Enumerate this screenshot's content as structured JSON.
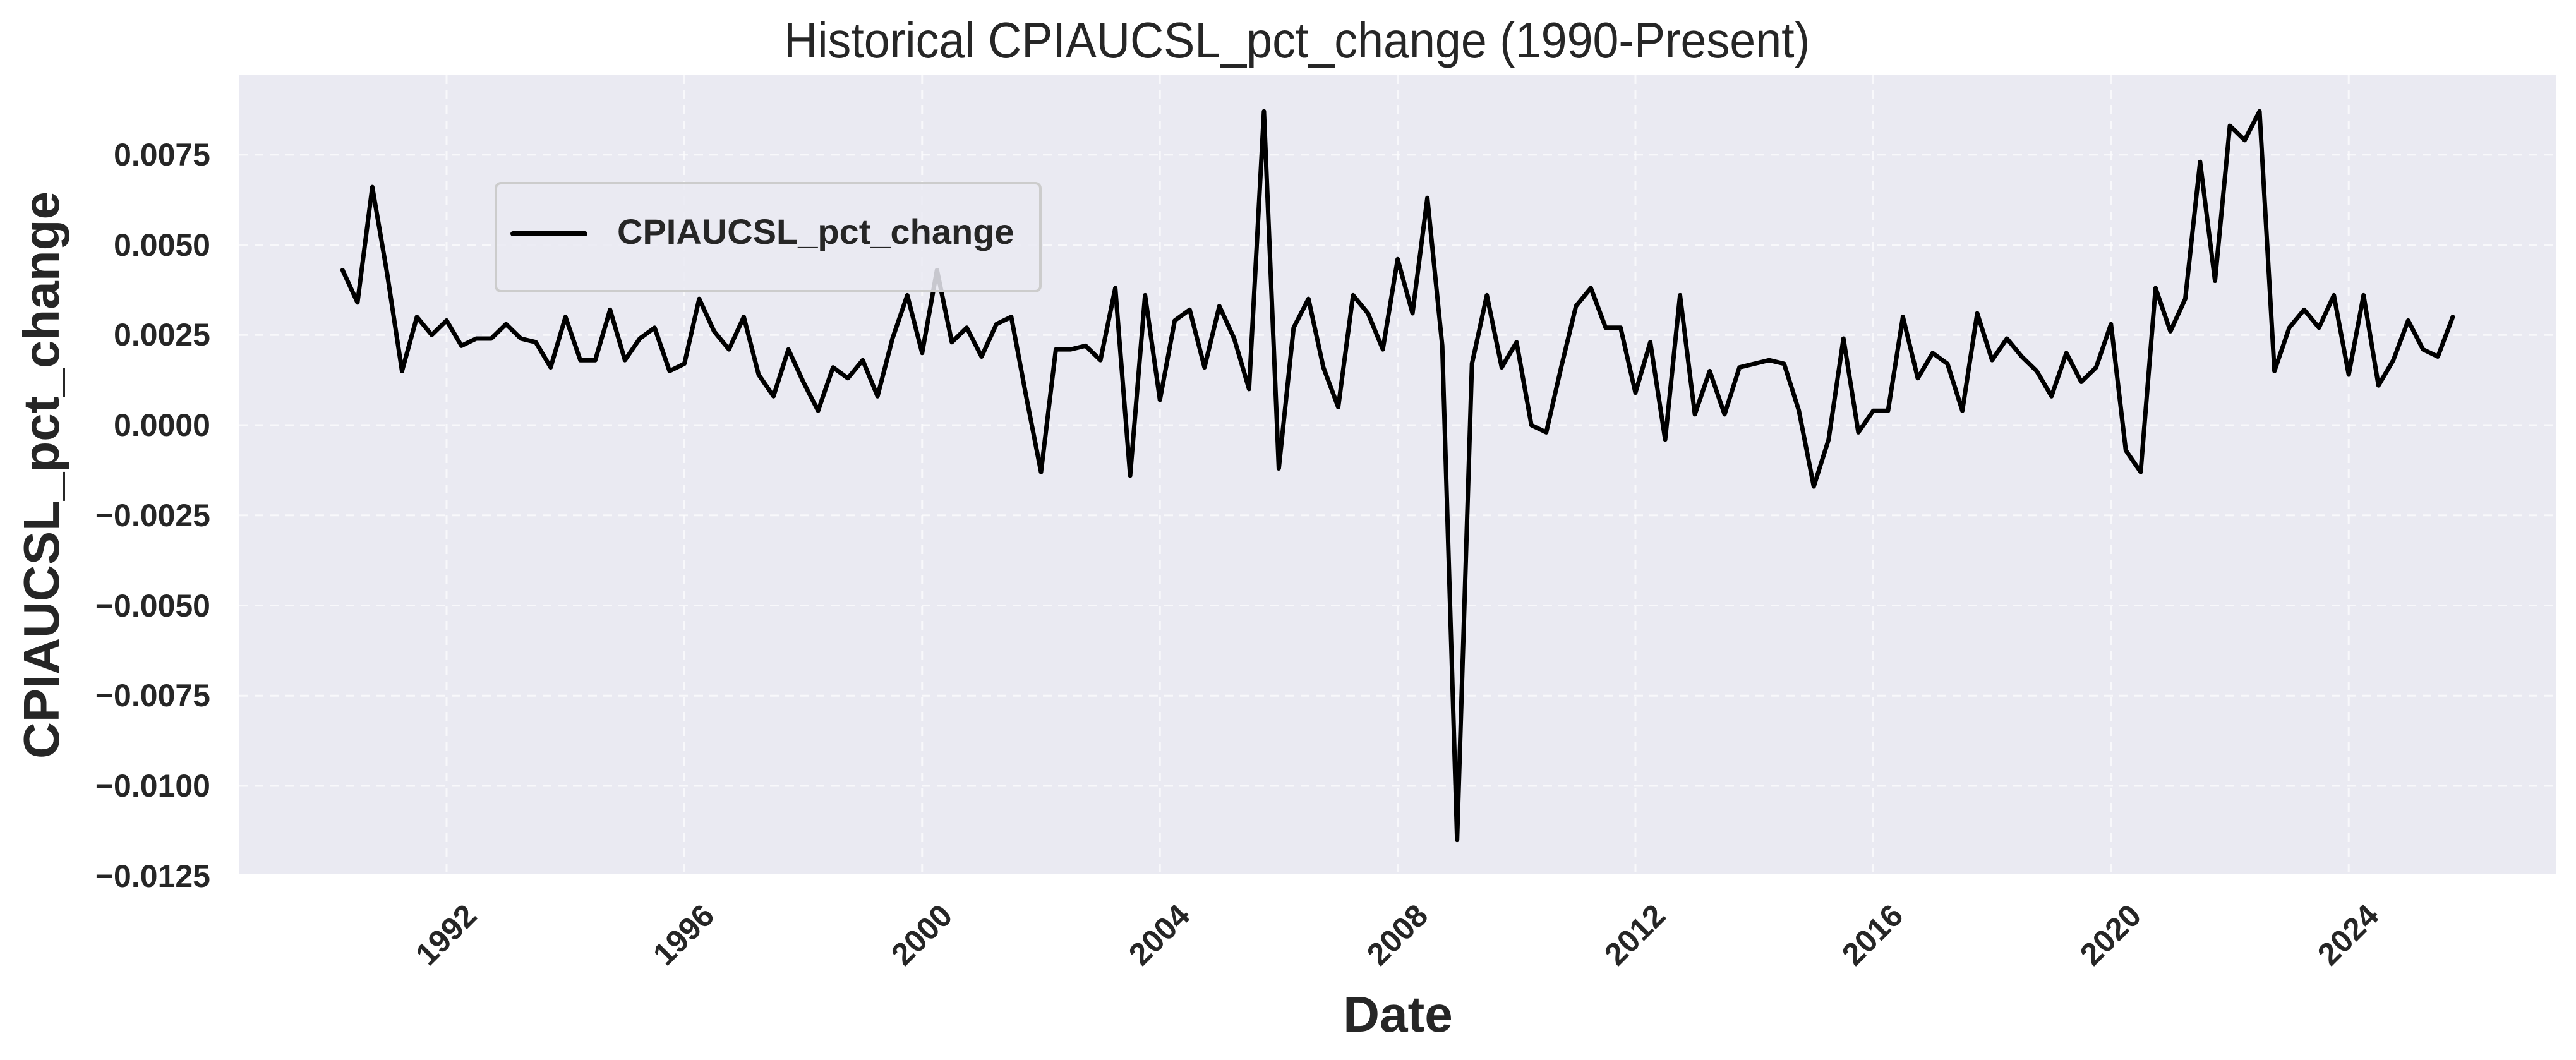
{
  "chart_data": {
    "type": "line",
    "title": "Historical CPIAUCSL_pct_change (1990-Present)",
    "xlabel": "Date",
    "ylabel": "CPIAUCSL_pct_change",
    "ylim": [
      -0.0125,
      0.0097
    ],
    "xlim": [
      1988.3,
      2027.3
    ],
    "yticks": [
      "0.0075",
      "0.0050",
      "0.0025",
      "0.0000",
      "−0.0025",
      "−0.0050",
      "−0.0075",
      "−0.0100",
      "−0.0125"
    ],
    "ytick_values": [
      0.0075,
      0.005,
      0.0025,
      0.0,
      -0.0025,
      -0.005,
      -0.0075,
      -0.01,
      -0.0125
    ],
    "xticks": [
      "1992",
      "1996",
      "2000",
      "2004",
      "2008",
      "2012",
      "2016",
      "2020",
      "2024"
    ],
    "xtick_values": [
      1992,
      1996,
      2000,
      2004,
      2008,
      2012,
      2016,
      2020,
      2024
    ],
    "grid": true,
    "legend_position": "upper left",
    "series": [
      {
        "name": "CPIAUCSL_pct_change",
        "color": "#000000",
        "x_start": 1990.25,
        "x_step": 0.25,
        "values": [
          0.0043,
          0.0034,
          0.0066,
          0.0042,
          0.0015,
          0.003,
          0.0025,
          0.0029,
          0.0022,
          0.0024,
          0.0024,
          0.0028,
          0.0024,
          0.0023,
          0.0016,
          0.003,
          0.0018,
          0.0018,
          0.0032,
          0.0018,
          0.0024,
          0.0027,
          0.0015,
          0.0017,
          0.0035,
          0.0026,
          0.0021,
          0.003,
          0.0014,
          0.0008,
          0.0021,
          0.0012,
          0.0004,
          0.0016,
          0.0013,
          0.0018,
          0.0008,
          0.0024,
          0.0036,
          0.002,
          0.0043,
          0.0023,
          0.0027,
          0.0019,
          0.0028,
          0.003,
          0.0008,
          -0.0013,
          0.0021,
          0.0021,
          0.0022,
          0.0018,
          0.0038,
          -0.0014,
          0.0036,
          0.0007,
          0.0029,
          0.0032,
          0.0016,
          0.0033,
          0.0024,
          0.001,
          0.0087,
          -0.0012,
          0.0027,
          0.0035,
          0.0016,
          0.0005,
          0.0036,
          0.0031,
          0.0021,
          0.0046,
          0.0031,
          0.0063,
          0.0022,
          -0.0115,
          0.0017,
          0.0036,
          0.0016,
          0.0023,
          0.0,
          -0.0002,
          0.0016,
          0.0033,
          0.0038,
          0.0027,
          0.0027,
          0.0009,
          0.0023,
          -0.0004,
          0.0036,
          0.0003,
          0.0015,
          0.0003,
          0.0016,
          0.0017,
          0.0018,
          0.0017,
          0.0004,
          -0.0017,
          -0.0004,
          0.0024,
          -0.0002,
          0.0004,
          0.0004,
          0.003,
          0.0013,
          0.002,
          0.0017,
          0.0004,
          0.0031,
          0.0018,
          0.0024,
          0.0019,
          0.0015,
          0.0008,
          0.002,
          0.0012,
          0.0016,
          0.0028,
          -0.0007,
          -0.0013,
          0.0038,
          0.0026,
          0.0035,
          0.0073,
          0.004,
          0.0083,
          0.0079,
          0.0087,
          0.0015,
          0.0027,
          0.0032,
          0.0027,
          0.0036,
          0.0014,
          0.0036,
          0.0011,
          0.0018,
          0.0029,
          0.0021,
          0.0019,
          0.003
        ]
      }
    ]
  },
  "legend": {
    "items": [
      {
        "label": "CPIAUCSL_pct_change",
        "color": "#000000"
      }
    ]
  },
  "style": {
    "plot_background": "#eaeaf2",
    "grid_color": "#ffffff",
    "line_color": "#000000",
    "text_color": "#262626"
  }
}
